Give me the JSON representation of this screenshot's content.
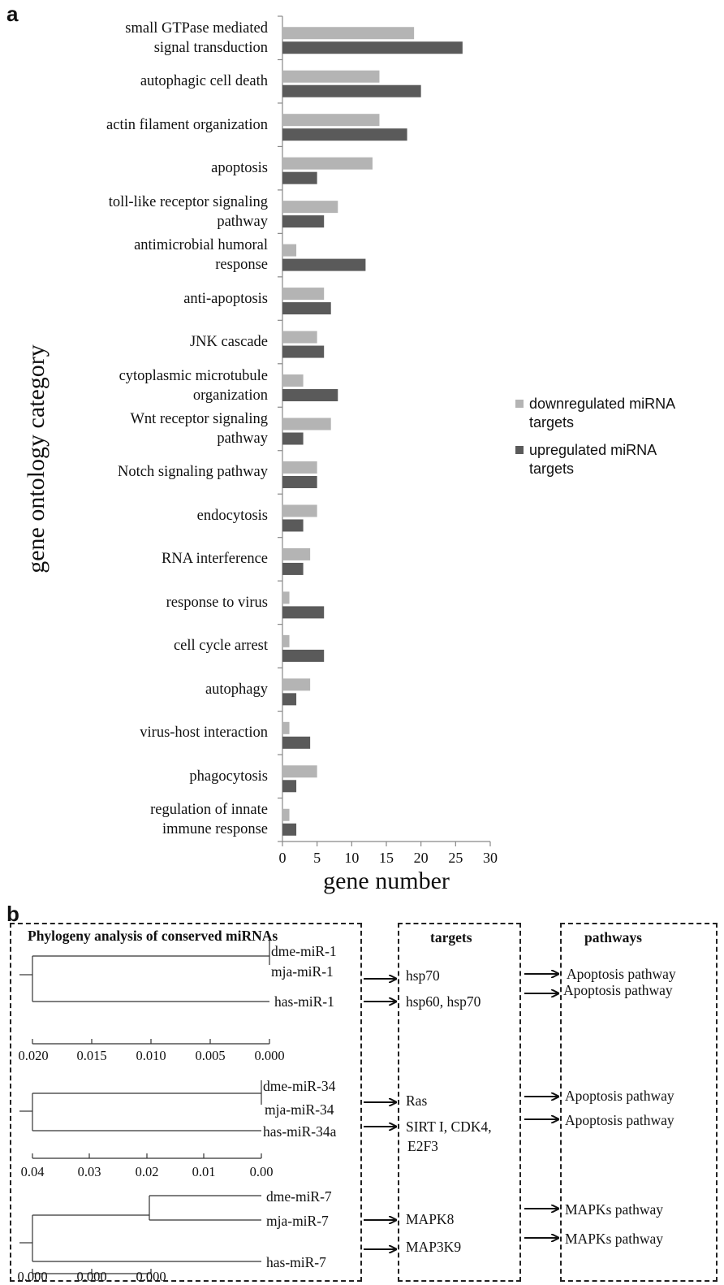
{
  "panel_a": {
    "letter": "a",
    "chart_data": {
      "type": "bar",
      "orientation": "horizontal",
      "categories": [
        "small GTPase mediated signal transduction",
        "autophagic cell death",
        "actin filament organization",
        "apoptosis",
        "toll-like receptor signaling pathway",
        "antimicrobial humoral response",
        "anti-apoptosis",
        "JNK cascade",
        "cytoplasmic microtubule organization",
        "Wnt receptor signaling pathway",
        "Notch signaling pathway",
        "endocytosis",
        "RNA interference",
        "response to virus",
        "cell cycle arrest",
        "autophagy",
        "virus-host interaction",
        "phagocytosis",
        "regulation of innate immune response"
      ],
      "category_lines": [
        [
          "small GTPase mediated",
          "signal transduction"
        ],
        [
          "autophagic cell death"
        ],
        [
          "actin filament organization"
        ],
        [
          "apoptosis"
        ],
        [
          "toll-like receptor signaling",
          "pathway"
        ],
        [
          "antimicrobial humoral",
          "response"
        ],
        [
          "anti-apoptosis"
        ],
        [
          "JNK cascade"
        ],
        [
          "cytoplasmic microtubule",
          "organization"
        ],
        [
          "Wnt receptor signaling",
          "pathway"
        ],
        [
          "Notch signaling pathway"
        ],
        [
          "endocytosis"
        ],
        [
          "RNA interference"
        ],
        [
          "response to virus"
        ],
        [
          "cell cycle arrest"
        ],
        [
          "autophagy"
        ],
        [
          "virus-host interaction"
        ],
        [
          "phagocytosis"
        ],
        [
          "regulation of innate",
          "immune response"
        ]
      ],
      "series": [
        {
          "name": "downregulated miRNA targets",
          "name_lines": [
            "downregulated miRNA",
            "targets"
          ],
          "color": "#b4b4b4",
          "values": [
            19,
            14,
            14,
            13,
            8,
            2,
            6,
            5,
            3,
            7,
            5,
            5,
            4,
            1,
            1,
            4,
            1,
            5,
            1
          ]
        },
        {
          "name": "upregulated miRNA targets",
          "name_lines": [
            "upregulated miRNA",
            "targets"
          ],
          "color": "#5a5a5a",
          "values": [
            26,
            20,
            18,
            5,
            6,
            12,
            7,
            6,
            8,
            3,
            5,
            3,
            3,
            6,
            6,
            2,
            4,
            2,
            2
          ]
        }
      ],
      "xlabel": "gene number",
      "ylabel": "gene ontology category",
      "xlim": [
        0,
        30
      ],
      "xticks": [
        "0",
        "5",
        "10",
        "15",
        "20",
        "25",
        "30"
      ],
      "grid": false,
      "legend_position": "right"
    }
  },
  "panel_b": {
    "letter": "b",
    "phylogeny": {
      "title": "Phylogeny analysis of conserved miRNAs",
      "groups": [
        {
          "leaves": [
            "dme-miR-1",
            "mja-miR-1",
            "has-miR-1"
          ],
          "scale": [
            "0.020",
            "0.015",
            "0.010",
            "0.005",
            "0.000"
          ]
        },
        {
          "leaves": [
            "dme-miR-34",
            "mja-miR-34",
            "has-miR-34a"
          ],
          "scale": [
            "0.04",
            "0.03",
            "0.02",
            "0.01",
            "0.00"
          ]
        },
        {
          "leaves": [
            "dme-miR-7",
            "mja-miR-7",
            "has-miR-7"
          ],
          "scale": [
            "0.000",
            "0.000",
            "0.000"
          ]
        }
      ]
    },
    "targets": {
      "title": "targets",
      "items": [
        "hsp70",
        "hsp60, hsp70",
        "Ras",
        "SIRT I, CDK4,",
        "E2F3",
        "MAPK8",
        "MAP3K9"
      ]
    },
    "pathways": {
      "title": "pathways",
      "items": [
        "Apoptosis pathway",
        "Apoptosis pathway",
        "Apoptosis pathway",
        "Apoptosis pathway",
        "MAPKs  pathway",
        "MAPKs  pathway"
      ]
    }
  }
}
